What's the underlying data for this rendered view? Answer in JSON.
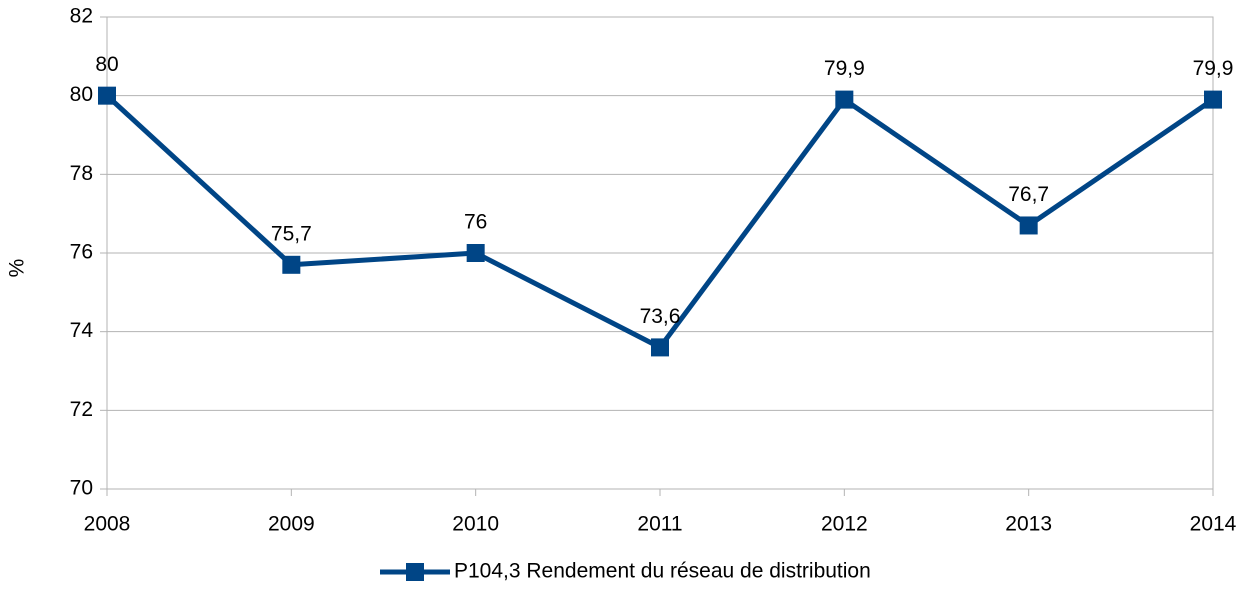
{
  "chart_data": {
    "type": "line",
    "categories": [
      "2008",
      "2009",
      "2010",
      "2011",
      "2012",
      "2013",
      "2014"
    ],
    "series": [
      {
        "name": "P104,3 Rendement du réseau de distribution",
        "color": "#004586",
        "values": [
          80,
          75.7,
          76,
          73.6,
          79.9,
          76.7,
          79.9
        ],
        "value_labels": [
          "80",
          "75,7",
          "76",
          "73,6",
          "79,9",
          "76,7",
          "79,9"
        ]
      }
    ],
    "y_label": "%",
    "ylim": [
      70,
      82
    ],
    "yticks": [
      70,
      72,
      74,
      76,
      78,
      80,
      82
    ],
    "grid": true,
    "legend": "bottom"
  }
}
